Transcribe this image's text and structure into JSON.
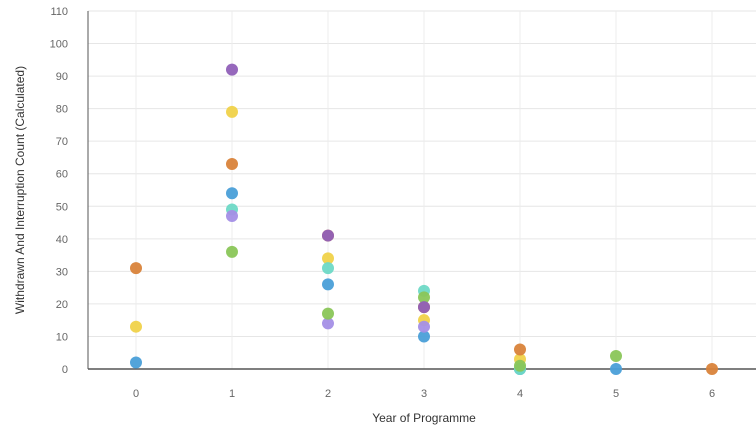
{
  "chart_data": {
    "type": "scatter",
    "title": "",
    "xlabel": "Year of Programme",
    "ylabel": "Withdrawn And Interruption Count (Calculated)",
    "x_ticks": [
      "0",
      "1",
      "2",
      "3",
      "4",
      "5",
      "6"
    ],
    "y_ticks": [
      "0",
      "10",
      "20",
      "30",
      "40",
      "50",
      "60",
      "70",
      "80",
      "90",
      "100",
      "110"
    ],
    "xlim": [
      0,
      6
    ],
    "ylim": [
      0,
      110
    ],
    "grid": true,
    "legend": "none",
    "series": [
      {
        "color": "#f0d24a",
        "x": [
          0,
          1,
          2,
          3,
          4
        ],
        "y": [
          13,
          79,
          34,
          15,
          3
        ]
      },
      {
        "color": "#d9833a",
        "x": [
          0,
          1,
          2,
          3,
          4,
          6
        ],
        "y": [
          31,
          63,
          41,
          19,
          6,
          0
        ]
      },
      {
        "color": "#4a9fd8",
        "x": [
          0,
          1,
          2,
          3,
          4,
          5
        ],
        "y": [
          2,
          54,
          26,
          10,
          0,
          0
        ]
      },
      {
        "color": "#6ed9c6",
        "x": [
          1,
          2,
          3,
          4
        ],
        "y": [
          49,
          31,
          24,
          0
        ]
      },
      {
        "color": "#a48fe6",
        "x": [
          1,
          2,
          3
        ],
        "y": [
          47,
          14,
          13
        ]
      },
      {
        "color": "#8ac658",
        "x": [
          1,
          2,
          3,
          4,
          5
        ],
        "y": [
          36,
          17,
          22,
          1,
          4
        ]
      },
      {
        "color": "#9060b8",
        "x": [
          1,
          2,
          3
        ],
        "y": [
          92,
          41,
          19
        ]
      }
    ]
  }
}
